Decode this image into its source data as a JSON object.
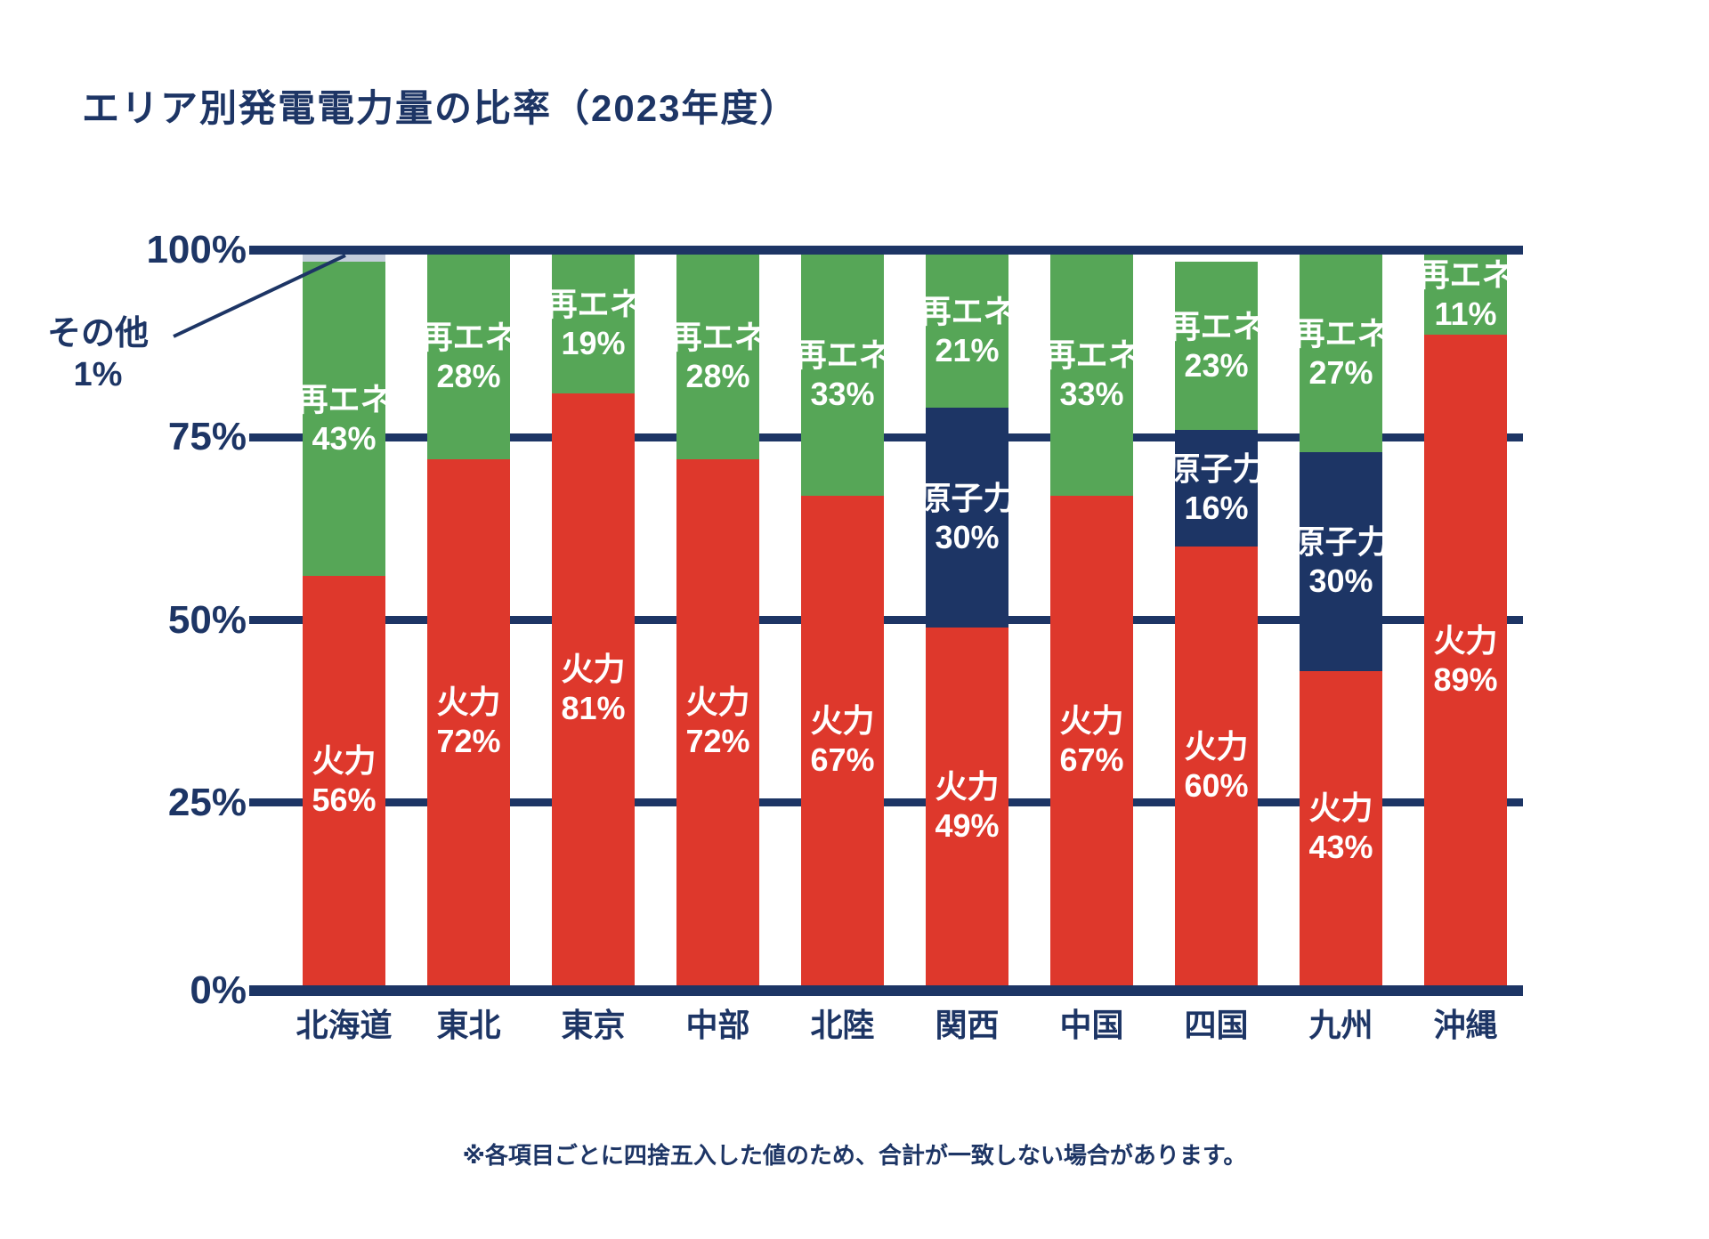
{
  "title": "エリア別発電電力量の比率（2023年度）",
  "footnote": "※各項目ごとに四捨五入した値のため、合計が一致しない場合があります。",
  "annotation": {
    "label": "その他",
    "value": "1%"
  },
  "colors": {
    "thermal": "#de382c",
    "nuclear": "#1d3565",
    "renewable": "#56a657",
    "other": "#c4cddb",
    "axis": "#1d3565",
    "label_text": "#ffffff"
  },
  "y_axis": {
    "ticks": [
      {
        "label": "100%",
        "value": 100
      },
      {
        "label": "75%",
        "value": 75
      },
      {
        "label": "50%",
        "value": 50
      },
      {
        "label": "25%",
        "value": 25
      },
      {
        "label": "0%",
        "value": 0
      }
    ]
  },
  "chart_data": {
    "type": "bar",
    "stacked": true,
    "title": "エリア別発電電力量の比率（2023年度）",
    "categories": [
      "北海道",
      "東北",
      "東京",
      "中部",
      "北陸",
      "関西",
      "中国",
      "四国",
      "九州",
      "沖縄"
    ],
    "series": [
      {
        "name": "火力",
        "key": "thermal",
        "values": [
          56,
          72,
          81,
          72,
          67,
          49,
          67,
          60,
          43,
          89
        ]
      },
      {
        "name": "原子力",
        "key": "nuclear",
        "values": [
          0,
          0,
          0,
          0,
          0,
          30,
          0,
          16,
          30,
          0
        ]
      },
      {
        "name": "再エネ",
        "key": "renewable",
        "values": [
          43,
          28,
          19,
          28,
          33,
          21,
          33,
          23,
          27,
          11
        ]
      },
      {
        "name": "その他",
        "key": "other",
        "values": [
          1,
          0,
          0,
          0,
          0,
          0,
          0,
          0,
          0,
          0
        ]
      }
    ],
    "ylim": [
      0,
      100
    ],
    "unit": "%",
    "grid": true,
    "legend": "none",
    "value_label_format": "{name}\n{value}%"
  }
}
